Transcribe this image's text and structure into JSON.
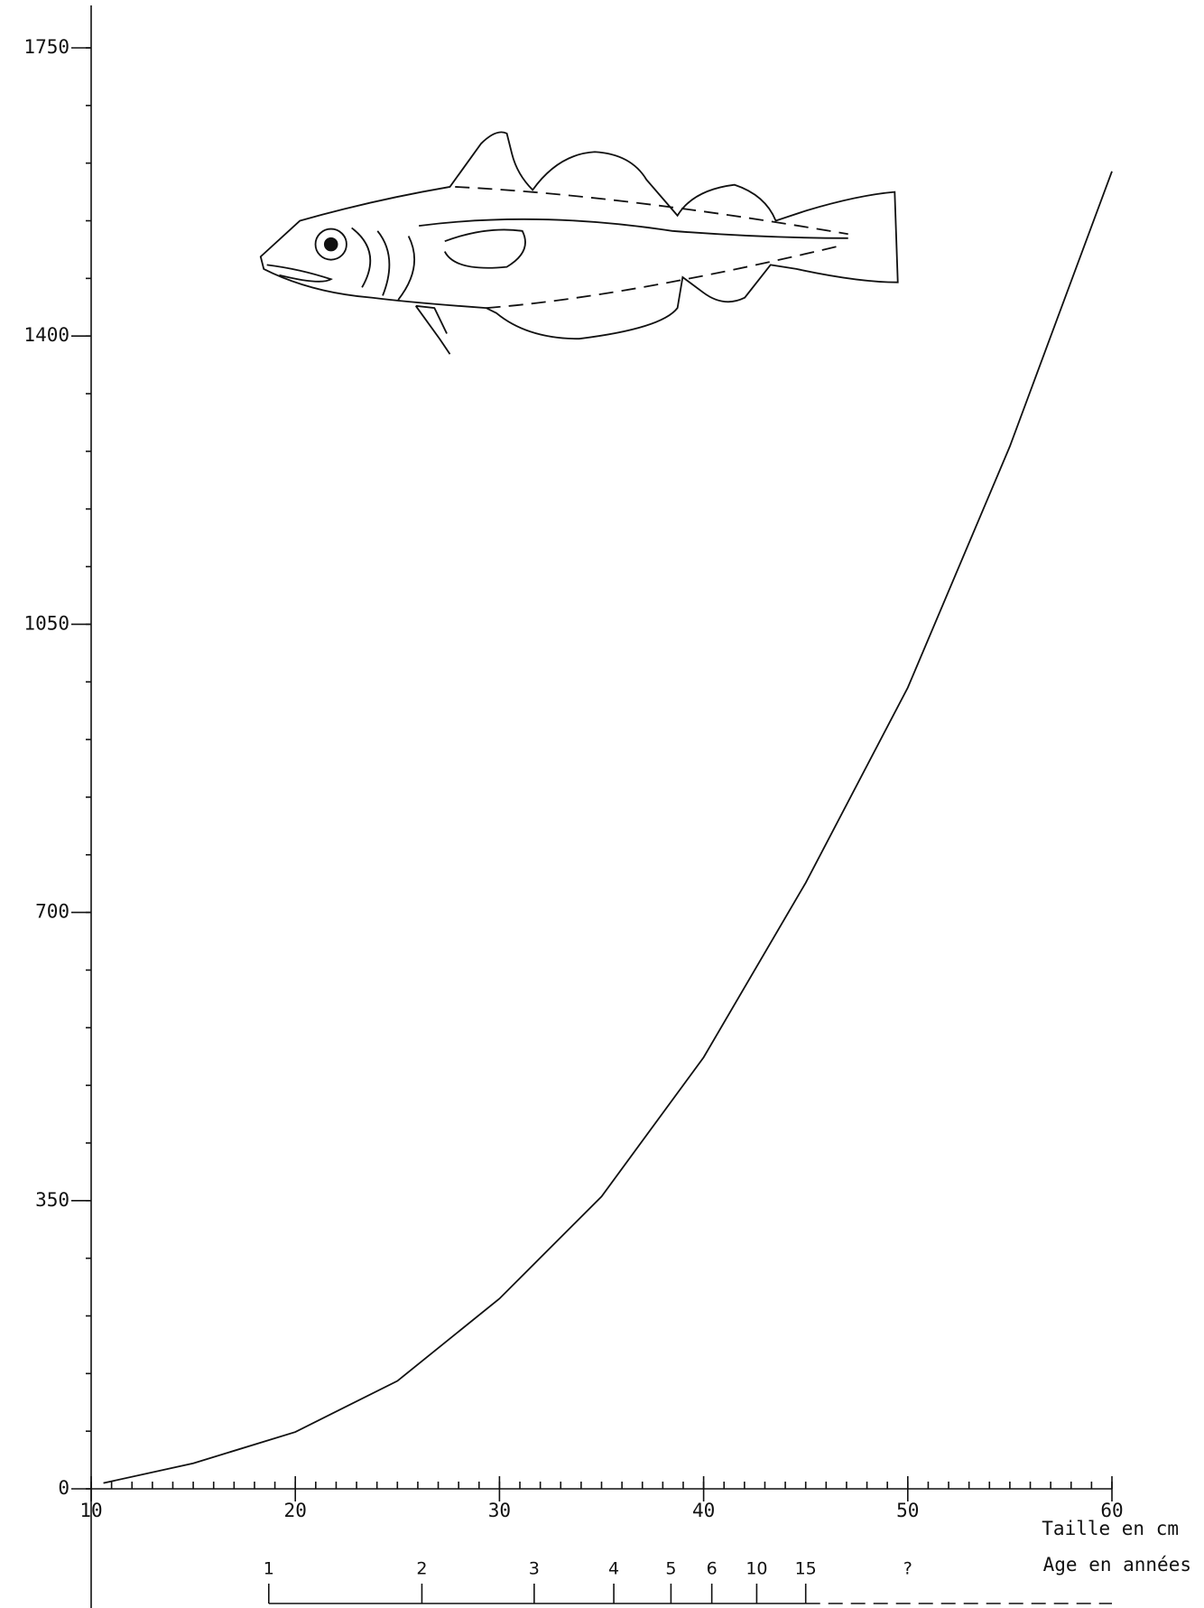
{
  "chart_data": {
    "type": "line",
    "x_label": "Taille en cm",
    "age_label": "Age en années",
    "x": [
      10.6,
      15,
      20,
      25,
      30,
      35,
      40,
      45,
      50,
      55,
      60
    ],
    "series": [
      {
        "color": "#111111",
        "values": [
          7,
          31,
          69,
          131,
          231,
          355,
          524,
          736,
          973,
          1266,
          1600
        ]
      }
    ],
    "xlim": [
      10,
      60
    ],
    "xticks": [
      10,
      20,
      30,
      40,
      50,
      60
    ],
    "minor_xtick_step": 1,
    "ylim": [
      0,
      1750
    ],
    "yticks": [
      0,
      350,
      700,
      1050,
      1400,
      1750
    ],
    "minor_ytick_step": 70,
    "age_ticks": [
      {
        "value": 18.7,
        "label": "1"
      },
      {
        "value": 26.2,
        "label": "2"
      },
      {
        "value": 31.7,
        "label": "3"
      },
      {
        "value": 35.6,
        "label": "4"
      },
      {
        "value": 38.4,
        "label": "5"
      },
      {
        "value": 40.4,
        "label": "6"
      },
      {
        "value": 42.6,
        "label": "10"
      },
      {
        "value": 45.0,
        "label": "15"
      },
      {
        "value": 50.0,
        "label": "?"
      }
    ]
  }
}
